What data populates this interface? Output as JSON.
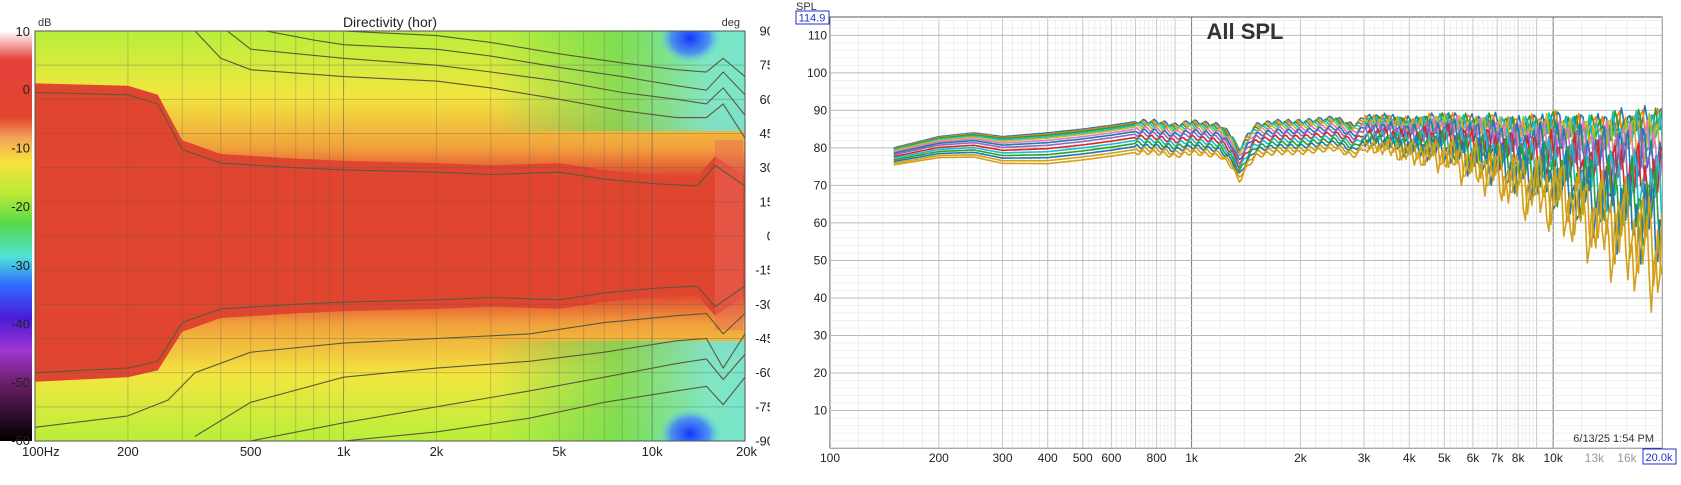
{
  "chart_data": [
    {
      "type": "heatmap",
      "title": "Directivity (hor)",
      "colorbar_unit": "dB",
      "y_unit": "deg",
      "x_range": [
        100,
        20000
      ],
      "x_scale": "log",
      "y_range": [
        -90,
        90
      ],
      "colorbar_range": [
        -60,
        10
      ],
      "x_ticks": [
        {
          "v": 100,
          "label": "100Hz"
        },
        {
          "v": 200,
          "label": "200"
        },
        {
          "v": 500,
          "label": "500"
        },
        {
          "v": 1000,
          "label": "1k"
        },
        {
          "v": 2000,
          "label": "2k"
        },
        {
          "v": 5000,
          "label": "5k"
        },
        {
          "v": 10000,
          "label": "10k"
        },
        {
          "v": 20000,
          "label": "20k"
        }
      ],
      "y_ticks": [
        {
          "v": 90,
          "label": "90"
        },
        {
          "v": 75,
          "label": "75"
        },
        {
          "v": 60,
          "label": "60"
        },
        {
          "v": 45,
          "label": "45"
        },
        {
          "v": 30,
          "label": "30"
        },
        {
          "v": 15,
          "label": "15"
        },
        {
          "v": 0,
          "label": "0"
        },
        {
          "v": -15,
          "label": "-15"
        },
        {
          "v": -30,
          "label": "-30"
        },
        {
          "v": -45,
          "label": "-45"
        },
        {
          "v": -60,
          "label": "-60"
        },
        {
          "v": -75,
          "label": "-75"
        },
        {
          "v": -90,
          "label": "-90"
        }
      ],
      "colorbar_ticks": [
        {
          "v": 10,
          "label": "10"
        },
        {
          "v": 0,
          "label": "0"
        },
        {
          "v": -10,
          "label": "-10"
        },
        {
          "v": -20,
          "label": "-20"
        },
        {
          "v": -30,
          "label": "-30"
        },
        {
          "v": -40,
          "label": "-40"
        },
        {
          "v": -50,
          "label": "-50"
        },
        {
          "v": -60,
          "label": "-60"
        }
      ],
      "contours": [
        {
          "points": [
            [
              100,
              63
            ],
            [
              200,
              62
            ],
            [
              250,
              58
            ],
            [
              300,
              38
            ],
            [
              400,
              32
            ],
            [
              700,
              30
            ],
            [
              1000,
              29
            ],
            [
              2000,
              28
            ],
            [
              3000,
              27
            ],
            [
              5000,
              28
            ],
            [
              7000,
              25
            ],
            [
              10000,
              23
            ],
            [
              14000,
              22
            ],
            [
              16000,
              31
            ],
            [
              20000,
              22
            ]
          ]
        },
        {
          "points": [
            [
              330,
              90
            ],
            [
              400,
              78
            ],
            [
              500,
              73
            ],
            [
              1000,
              70
            ],
            [
              2000,
              68
            ],
            [
              3000,
              65
            ],
            [
              5000,
              60
            ],
            [
              8000,
              55
            ],
            [
              12000,
              52
            ],
            [
              15000,
              52
            ],
            [
              17000,
              58
            ],
            [
              20000,
              43
            ]
          ]
        },
        {
          "points": [
            [
              420,
              90
            ],
            [
              500,
              82
            ],
            [
              1000,
              78
            ],
            [
              2000,
              75
            ],
            [
              3000,
              72
            ],
            [
              5000,
              68
            ],
            [
              8000,
              63
            ],
            [
              12000,
              60
            ],
            [
              15000,
              58
            ],
            [
              17000,
              65
            ],
            [
              20000,
              53
            ]
          ]
        },
        {
          "points": [
            [
              560,
              90
            ],
            [
              800,
              86
            ],
            [
              1000,
              84
            ],
            [
              2000,
              82
            ],
            [
              3000,
              79
            ],
            [
              5000,
              74
            ],
            [
              8000,
              70
            ],
            [
              12000,
              66
            ],
            [
              15000,
              64
            ],
            [
              17000,
              72
            ],
            [
              20000,
              62
            ]
          ]
        },
        {
          "points": [
            [
              800,
              90
            ],
            [
              1000,
              90
            ],
            [
              2000,
              88
            ],
            [
              3000,
              85
            ],
            [
              5000,
              80
            ],
            [
              8000,
              76
            ],
            [
              12000,
              73
            ],
            [
              15000,
              72
            ],
            [
              17000,
              78
            ],
            [
              20000,
              70
            ]
          ]
        },
        {
          "points": [
            [
              100,
              -60
            ],
            [
              200,
              -58
            ],
            [
              250,
              -55
            ],
            [
              300,
              -38
            ],
            [
              400,
              -32
            ],
            [
              700,
              -30
            ],
            [
              1000,
              -29
            ],
            [
              2000,
              -28
            ],
            [
              3000,
              -27
            ],
            [
              5000,
              -28
            ],
            [
              7000,
              -25
            ],
            [
              10000,
              -23
            ],
            [
              14000,
              -22
            ],
            [
              16000,
              -31
            ],
            [
              20000,
              -22
            ]
          ]
        },
        {
          "points": [
            [
              100,
              -84
            ],
            [
              200,
              -79
            ],
            [
              270,
              -72
            ],
            [
              330,
              -60
            ],
            [
              500,
              -51
            ],
            [
              1000,
              -47
            ],
            [
              2000,
              -45
            ],
            [
              4000,
              -43
            ],
            [
              7000,
              -38
            ],
            [
              12000,
              -35
            ],
            [
              15000,
              -34
            ],
            [
              17000,
              -43
            ],
            [
              20000,
              -34
            ]
          ]
        },
        {
          "points": [
            [
              330,
              -88
            ],
            [
              500,
              -73
            ],
            [
              1000,
              -62
            ],
            [
              2000,
              -58
            ],
            [
              4000,
              -55
            ],
            [
              7000,
              -51
            ],
            [
              12000,
              -46
            ],
            [
              15000,
              -45
            ],
            [
              17000,
              -58
            ],
            [
              20000,
              -43
            ]
          ]
        },
        {
          "points": [
            [
              500,
              -90
            ],
            [
              1000,
              -82
            ],
            [
              2000,
              -75
            ],
            [
              4000,
              -68
            ],
            [
              7000,
              -62
            ],
            [
              12000,
              -56
            ],
            [
              15000,
              -54
            ],
            [
              17000,
              -63
            ],
            [
              20000,
              -52
            ]
          ]
        },
        {
          "points": [
            [
              1000,
              -90
            ],
            [
              2000,
              -86
            ],
            [
              4000,
              -80
            ],
            [
              7000,
              -73
            ],
            [
              12000,
              -68
            ],
            [
              15000,
              -66
            ],
            [
              17000,
              -74
            ],
            [
              20000,
              -62
            ]
          ]
        }
      ]
    },
    {
      "type": "line",
      "title": "All SPL",
      "ylabel": "SPL",
      "y_readout": "114.9",
      "x_readout": "20.0k",
      "timestamp": "6/13/25 1:54 PM",
      "x_range": [
        100,
        20000
      ],
      "x_scale": "log",
      "y_range": [
        0,
        114.9
      ],
      "x_ticks": [
        {
          "v": 100,
          "label": "100",
          "muted": false
        },
        {
          "v": 200,
          "label": "200",
          "muted": false
        },
        {
          "v": 300,
          "label": "300",
          "muted": false
        },
        {
          "v": 400,
          "label": "400",
          "muted": false
        },
        {
          "v": 500,
          "label": "500",
          "muted": false
        },
        {
          "v": 600,
          "label": "600",
          "muted": false
        },
        {
          "v": 800,
          "label": "800",
          "muted": false
        },
        {
          "v": 1000,
          "label": "1k",
          "muted": false
        },
        {
          "v": 2000,
          "label": "2k",
          "muted": false
        },
        {
          "v": 3000,
          "label": "3k",
          "muted": false
        },
        {
          "v": 4000,
          "label": "4k",
          "muted": false
        },
        {
          "v": 5000,
          "label": "5k",
          "muted": false
        },
        {
          "v": 6000,
          "label": "6k",
          "muted": false
        },
        {
          "v": 7000,
          "label": "7k",
          "muted": false
        },
        {
          "v": 8000,
          "label": "8k",
          "muted": false
        },
        {
          "v": 10000,
          "label": "10k",
          "muted": false
        },
        {
          "v": 13000,
          "label": "13k",
          "muted": true
        },
        {
          "v": 16000,
          "label": "16k",
          "muted": true
        }
      ],
      "y_ticks": [
        {
          "v": 110,
          "label": "110"
        },
        {
          "v": 100,
          "label": "100"
        },
        {
          "v": 90,
          "label": "90"
        },
        {
          "v": 80,
          "label": "80"
        },
        {
          "v": 70,
          "label": "70"
        },
        {
          "v": 60,
          "label": "60"
        },
        {
          "v": 50,
          "label": "50"
        },
        {
          "v": 40,
          "label": "40"
        },
        {
          "v": 30,
          "label": "30"
        },
        {
          "v": 20,
          "label": "20"
        },
        {
          "v": 10,
          "label": "10"
        }
      ],
      "x_start": 150,
      "base_shape": [
        [
          150,
          80
        ],
        [
          200,
          83
        ],
        [
          250,
          84
        ],
        [
          300,
          83
        ],
        [
          400,
          84
        ],
        [
          500,
          85
        ],
        [
          600,
          86
        ],
        [
          700,
          87
        ],
        [
          800,
          87
        ],
        [
          900,
          86
        ],
        [
          1000,
          87
        ],
        [
          1200,
          86
        ],
        [
          1300,
          83
        ],
        [
          1350,
          79
        ],
        [
          1400,
          82
        ],
        [
          1500,
          86
        ],
        [
          1700,
          87
        ],
        [
          2000,
          87
        ],
        [
          2500,
          88
        ],
        [
          2800,
          86
        ],
        [
          3000,
          88
        ],
        [
          3500,
          88
        ],
        [
          4000,
          87
        ],
        [
          5000,
          88
        ],
        [
          6000,
          87
        ],
        [
          7000,
          87
        ],
        [
          8000,
          86
        ],
        [
          10000,
          87
        ],
        [
          12000,
          86
        ],
        [
          14000,
          86
        ],
        [
          16000,
          87
        ],
        [
          18000,
          87
        ],
        [
          20000,
          88
        ]
      ],
      "series": [
        {
          "color": "#1f77b4",
          "offset": 0,
          "hf_drop": 0
        },
        {
          "color": "#ff7f0e",
          "offset": -0.3,
          "hf_drop": 1
        },
        {
          "color": "#2ca02c",
          "offset": -0.6,
          "hf_drop": 1.5
        },
        {
          "color": "#17becf",
          "offset": -1.0,
          "hf_drop": 2.5
        },
        {
          "color": "#bcbd22",
          "offset": -1.4,
          "hf_drop": 4
        },
        {
          "color": "#e377c2",
          "offset": -2.0,
          "hf_drop": 6
        },
        {
          "color": "#1f77b4",
          "offset": -2.6,
          "hf_drop": 8
        },
        {
          "color": "#9467bd",
          "offset": -3.3,
          "hf_drop": 10
        },
        {
          "color": "#d62728",
          "offset": -4.2,
          "hf_drop": 13
        },
        {
          "color": "#17becf",
          "offset": -5.0,
          "hf_drop": 16
        },
        {
          "color": "#2ca02c",
          "offset": -5.8,
          "hf_drop": 19
        },
        {
          "color": "#1f77b4",
          "offset": -6.6,
          "hf_drop": 22
        },
        {
          "color": "#d4a017",
          "offset": -7.4,
          "hf_drop": 26
        },
        {
          "color": "#d4a017",
          "offset": -8.2,
          "hf_drop": 31
        }
      ]
    }
  ]
}
